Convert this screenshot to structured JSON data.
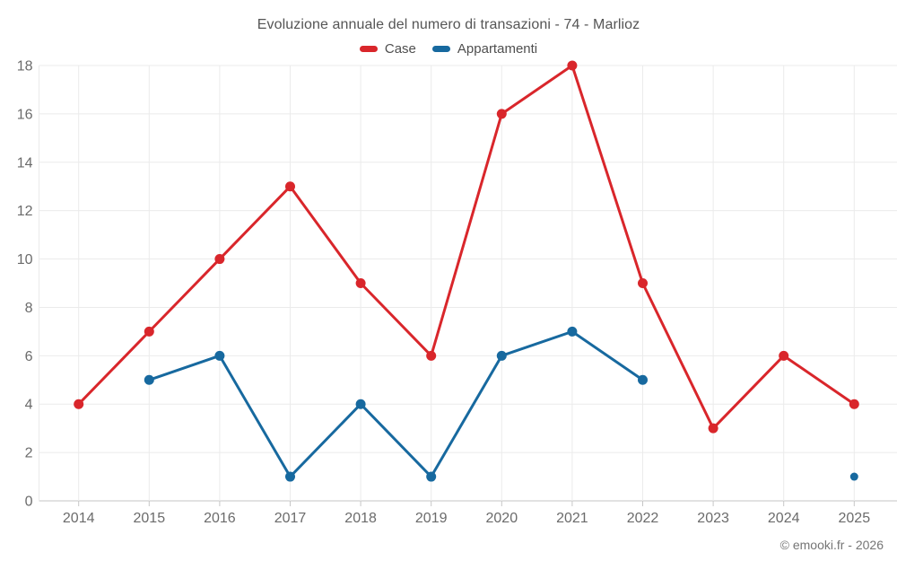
{
  "chart_data": {
    "type": "line",
    "title": "Evoluzione annuale del numero di transazioni - 74 - Marlioz",
    "categories": [
      "2014",
      "2015",
      "2016",
      "2017",
      "2018",
      "2019",
      "2020",
      "2021",
      "2022",
      "2023",
      "2024",
      "2025"
    ],
    "series": [
      {
        "name": "Case",
        "color": "#d9262b",
        "values": [
          4,
          7,
          10,
          13,
          9,
          6,
          16,
          18,
          9,
          3,
          6,
          4
        ]
      },
      {
        "name": "Appartamenti",
        "color": "#17699f",
        "values": [
          null,
          5,
          6,
          1,
          4,
          1,
          6,
          7,
          5,
          null,
          null,
          1
        ]
      }
    ],
    "xlabel": "",
    "ylabel": "",
    "ylim": [
      0,
      18
    ],
    "ytick_step": 2,
    "grid": true,
    "legend_position": "top",
    "watermark": "© emooki.fr - 2026"
  }
}
